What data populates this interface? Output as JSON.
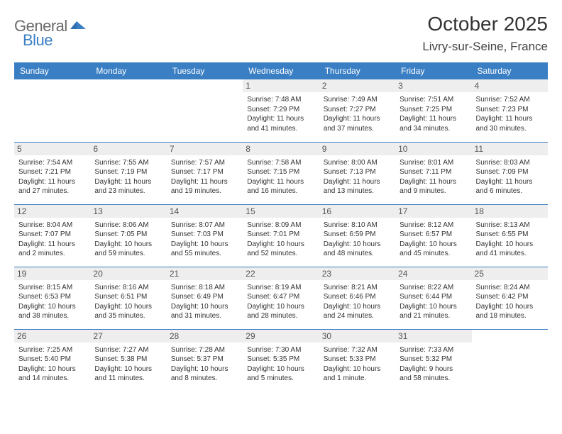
{
  "logo": {
    "text1": "General",
    "text2": "Blue"
  },
  "title": "October 2025",
  "location": "Livry-sur-Seine, France",
  "colors": {
    "header_bg": "#3a7fc4",
    "header_text": "#ffffff",
    "daynum_bg": "#eeeeee",
    "border": "#3a7fc4",
    "text": "#333333"
  },
  "day_headers": [
    "Sunday",
    "Monday",
    "Tuesday",
    "Wednesday",
    "Thursday",
    "Friday",
    "Saturday"
  ],
  "weeks": [
    [
      {
        "n": "",
        "lines": [
          "",
          "",
          "",
          ""
        ]
      },
      {
        "n": "",
        "lines": [
          "",
          "",
          "",
          ""
        ]
      },
      {
        "n": "",
        "lines": [
          "",
          "",
          "",
          ""
        ]
      },
      {
        "n": "1",
        "lines": [
          "Sunrise: 7:48 AM",
          "Sunset: 7:29 PM",
          "Daylight: 11 hours",
          "and 41 minutes."
        ]
      },
      {
        "n": "2",
        "lines": [
          "Sunrise: 7:49 AM",
          "Sunset: 7:27 PM",
          "Daylight: 11 hours",
          "and 37 minutes."
        ]
      },
      {
        "n": "3",
        "lines": [
          "Sunrise: 7:51 AM",
          "Sunset: 7:25 PM",
          "Daylight: 11 hours",
          "and 34 minutes."
        ]
      },
      {
        "n": "4",
        "lines": [
          "Sunrise: 7:52 AM",
          "Sunset: 7:23 PM",
          "Daylight: 11 hours",
          "and 30 minutes."
        ]
      }
    ],
    [
      {
        "n": "5",
        "lines": [
          "Sunrise: 7:54 AM",
          "Sunset: 7:21 PM",
          "Daylight: 11 hours",
          "and 27 minutes."
        ]
      },
      {
        "n": "6",
        "lines": [
          "Sunrise: 7:55 AM",
          "Sunset: 7:19 PM",
          "Daylight: 11 hours",
          "and 23 minutes."
        ]
      },
      {
        "n": "7",
        "lines": [
          "Sunrise: 7:57 AM",
          "Sunset: 7:17 PM",
          "Daylight: 11 hours",
          "and 19 minutes."
        ]
      },
      {
        "n": "8",
        "lines": [
          "Sunrise: 7:58 AM",
          "Sunset: 7:15 PM",
          "Daylight: 11 hours",
          "and 16 minutes."
        ]
      },
      {
        "n": "9",
        "lines": [
          "Sunrise: 8:00 AM",
          "Sunset: 7:13 PM",
          "Daylight: 11 hours",
          "and 13 minutes."
        ]
      },
      {
        "n": "10",
        "lines": [
          "Sunrise: 8:01 AM",
          "Sunset: 7:11 PM",
          "Daylight: 11 hours",
          "and 9 minutes."
        ]
      },
      {
        "n": "11",
        "lines": [
          "Sunrise: 8:03 AM",
          "Sunset: 7:09 PM",
          "Daylight: 11 hours",
          "and 6 minutes."
        ]
      }
    ],
    [
      {
        "n": "12",
        "lines": [
          "Sunrise: 8:04 AM",
          "Sunset: 7:07 PM",
          "Daylight: 11 hours",
          "and 2 minutes."
        ]
      },
      {
        "n": "13",
        "lines": [
          "Sunrise: 8:06 AM",
          "Sunset: 7:05 PM",
          "Daylight: 10 hours",
          "and 59 minutes."
        ]
      },
      {
        "n": "14",
        "lines": [
          "Sunrise: 8:07 AM",
          "Sunset: 7:03 PM",
          "Daylight: 10 hours",
          "and 55 minutes."
        ]
      },
      {
        "n": "15",
        "lines": [
          "Sunrise: 8:09 AM",
          "Sunset: 7:01 PM",
          "Daylight: 10 hours",
          "and 52 minutes."
        ]
      },
      {
        "n": "16",
        "lines": [
          "Sunrise: 8:10 AM",
          "Sunset: 6:59 PM",
          "Daylight: 10 hours",
          "and 48 minutes."
        ]
      },
      {
        "n": "17",
        "lines": [
          "Sunrise: 8:12 AM",
          "Sunset: 6:57 PM",
          "Daylight: 10 hours",
          "and 45 minutes."
        ]
      },
      {
        "n": "18",
        "lines": [
          "Sunrise: 8:13 AM",
          "Sunset: 6:55 PM",
          "Daylight: 10 hours",
          "and 41 minutes."
        ]
      }
    ],
    [
      {
        "n": "19",
        "lines": [
          "Sunrise: 8:15 AM",
          "Sunset: 6:53 PM",
          "Daylight: 10 hours",
          "and 38 minutes."
        ]
      },
      {
        "n": "20",
        "lines": [
          "Sunrise: 8:16 AM",
          "Sunset: 6:51 PM",
          "Daylight: 10 hours",
          "and 35 minutes."
        ]
      },
      {
        "n": "21",
        "lines": [
          "Sunrise: 8:18 AM",
          "Sunset: 6:49 PM",
          "Daylight: 10 hours",
          "and 31 minutes."
        ]
      },
      {
        "n": "22",
        "lines": [
          "Sunrise: 8:19 AM",
          "Sunset: 6:47 PM",
          "Daylight: 10 hours",
          "and 28 minutes."
        ]
      },
      {
        "n": "23",
        "lines": [
          "Sunrise: 8:21 AM",
          "Sunset: 6:46 PM",
          "Daylight: 10 hours",
          "and 24 minutes."
        ]
      },
      {
        "n": "24",
        "lines": [
          "Sunrise: 8:22 AM",
          "Sunset: 6:44 PM",
          "Daylight: 10 hours",
          "and 21 minutes."
        ]
      },
      {
        "n": "25",
        "lines": [
          "Sunrise: 8:24 AM",
          "Sunset: 6:42 PM",
          "Daylight: 10 hours",
          "and 18 minutes."
        ]
      }
    ],
    [
      {
        "n": "26",
        "lines": [
          "Sunrise: 7:25 AM",
          "Sunset: 5:40 PM",
          "Daylight: 10 hours",
          "and 14 minutes."
        ]
      },
      {
        "n": "27",
        "lines": [
          "Sunrise: 7:27 AM",
          "Sunset: 5:38 PM",
          "Daylight: 10 hours",
          "and 11 minutes."
        ]
      },
      {
        "n": "28",
        "lines": [
          "Sunrise: 7:28 AM",
          "Sunset: 5:37 PM",
          "Daylight: 10 hours",
          "and 8 minutes."
        ]
      },
      {
        "n": "29",
        "lines": [
          "Sunrise: 7:30 AM",
          "Sunset: 5:35 PM",
          "Daylight: 10 hours",
          "and 5 minutes."
        ]
      },
      {
        "n": "30",
        "lines": [
          "Sunrise: 7:32 AM",
          "Sunset: 5:33 PM",
          "Daylight: 10 hours",
          "and 1 minute."
        ]
      },
      {
        "n": "31",
        "lines": [
          "Sunrise: 7:33 AM",
          "Sunset: 5:32 PM",
          "Daylight: 9 hours",
          "and 58 minutes."
        ]
      },
      {
        "n": "",
        "lines": [
          "",
          "",
          "",
          ""
        ]
      }
    ]
  ]
}
